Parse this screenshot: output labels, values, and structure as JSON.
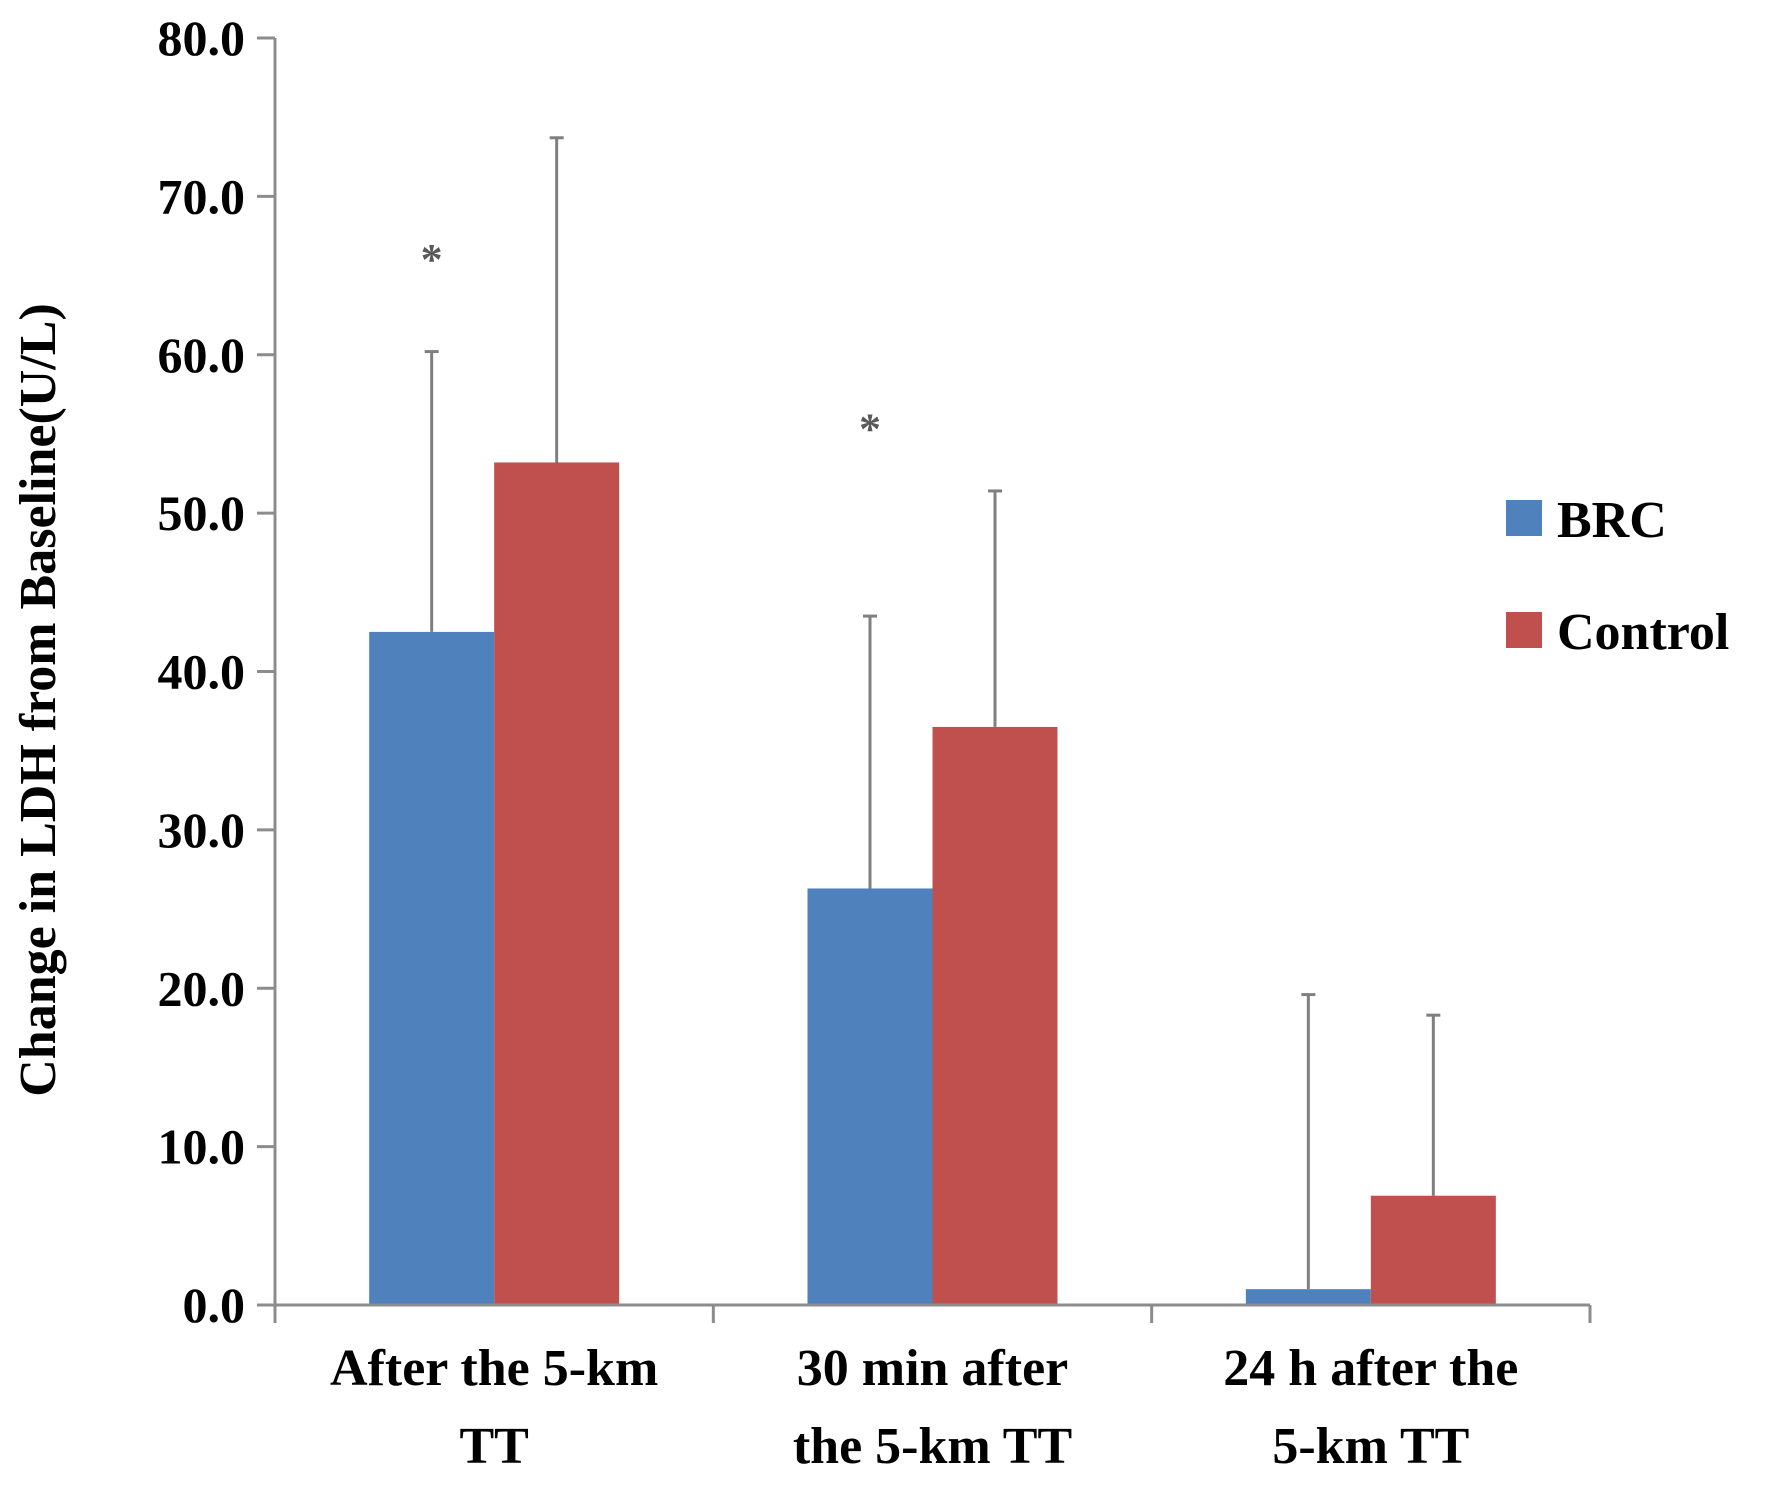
{
  "chart_data": {
    "type": "bar",
    "title": "",
    "xlabel": "",
    "ylabel": "Change in LDH from Baseline(U/L)",
    "ylim": [
      0,
      80
    ],
    "yticks": [
      "0.0",
      "10.0",
      "20.0",
      "30.0",
      "40.0",
      "50.0",
      "60.0",
      "70.0",
      "80.0"
    ],
    "categories": [
      [
        "After the 5-km",
        "TT"
      ],
      [
        "30 min after",
        "the 5-km TT"
      ],
      [
        "24 h after the",
        "5-km TT"
      ]
    ],
    "series": [
      {
        "name": "BRC",
        "color": "#4f81bd",
        "values": [
          42.5,
          26.3,
          1.0
        ],
        "error": [
          17.7,
          17.2,
          18.6
        ]
      },
      {
        "name": "Control",
        "color": "#c0504d",
        "values": [
          53.2,
          36.5,
          6.9
        ],
        "error": [
          20.5,
          14.9,
          11.4
        ]
      }
    ],
    "annotations": [
      {
        "text": "*",
        "category_index": 0,
        "series_index": 0,
        "value": 66.5
      },
      {
        "text": "*",
        "category_index": 1,
        "series_index": 0,
        "value": 55.8
      }
    ],
    "legend": {
      "position": "right",
      "entries": [
        "BRC",
        "Control"
      ]
    },
    "grid": false
  }
}
